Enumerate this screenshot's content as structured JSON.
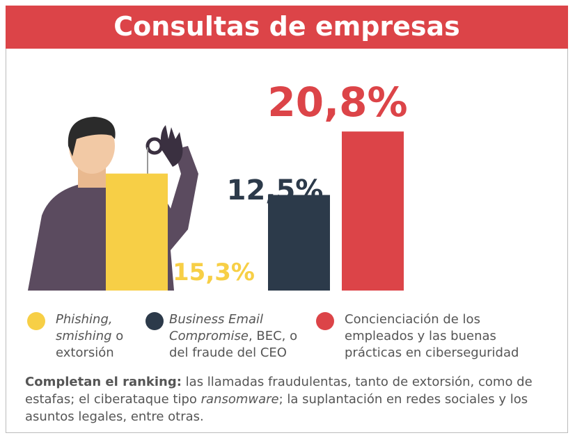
{
  "chart_data": {
    "type": "bar",
    "title": "Consultas de empresas",
    "values": [
      15.3,
      12.5,
      20.8
    ],
    "value_labels": [
      "15,3%",
      "12,5%",
      "20,8%"
    ],
    "colors": [
      "#f7cf46",
      "#2c3a4a",
      "#dc4448"
    ],
    "legend": [
      [
        {
          "text": "Phishing, smishing",
          "italic": true
        },
        {
          "text": " o extorsión"
        }
      ],
      [
        {
          "text": "Business Email Compromise",
          "italic": true
        },
        {
          "text": ", BEC, o del fraude del CEO"
        }
      ],
      [
        {
          "text": "Concienciación de los empleados y las buenas prácticas en ciberseguridad"
        }
      ]
    ]
  },
  "footer": [
    {
      "text": "Completan el ranking:",
      "bold": true
    },
    {
      "text": " las llamadas fraudulentas, tanto de extorsión, como de estafas; el ciberataque tipo "
    },
    {
      "text": "ransomware",
      "italic": true
    },
    {
      "text": "; la suplantación en redes sociales y los asuntos legales, entre otras."
    }
  ]
}
